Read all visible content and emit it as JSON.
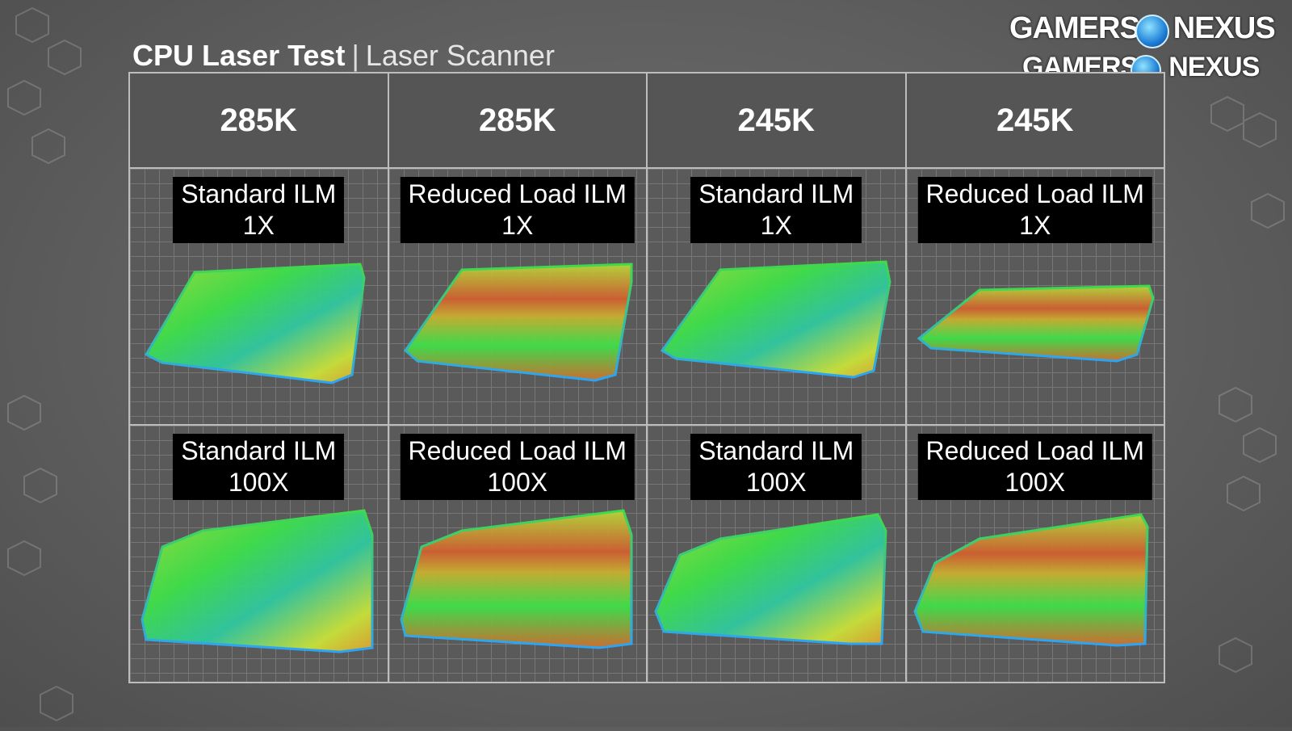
{
  "title": {
    "main": "CPU Laser Test",
    "separator": "|",
    "sub": "Laser Scanner"
  },
  "logo": {
    "text": [
      "GAMERS",
      "NEXUS"
    ]
  },
  "columns": [
    {
      "cpu": "285K",
      "mount": "Standard ILM"
    },
    {
      "cpu": "285K",
      "mount": "Reduced Load ILM"
    },
    {
      "cpu": "245K",
      "mount": "Standard ILM"
    },
    {
      "cpu": "245K",
      "mount": "Reduced Load ILM"
    }
  ],
  "rows": [
    {
      "scale": "1X"
    },
    {
      "scale": "100X"
    }
  ],
  "colors": {
    "low": "#2aa8ff",
    "mid": "#3fe04a",
    "high": "#d0402a"
  }
}
